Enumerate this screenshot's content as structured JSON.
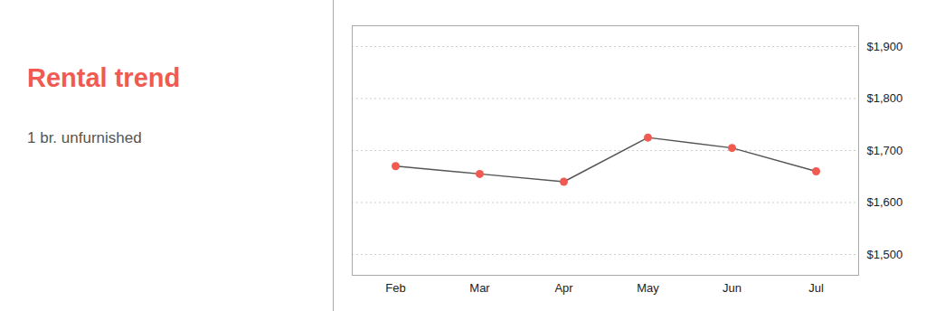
{
  "chart_data": {
    "type": "line",
    "title": "Rental trend",
    "subtitle": "1 br. unfurnished",
    "categories": [
      "Feb",
      "Mar",
      "Apr",
      "May",
      "Jun",
      "Jul"
    ],
    "values": [
      1670,
      1655,
      1640,
      1725,
      1705,
      1660
    ],
    "color": "#555555",
    "marker": "circle",
    "ylim": [
      1460,
      1940
    ],
    "yticks": [
      {
        "value": 1500,
        "label": "$1,500"
      },
      {
        "value": 1600,
        "label": "$1,600"
      },
      {
        "value": 1700,
        "label": "$1,700"
      },
      {
        "value": 1800,
        "label": "$1,800"
      },
      {
        "value": 1900,
        "label": "$1,900"
      }
    ],
    "grid": true
  }
}
